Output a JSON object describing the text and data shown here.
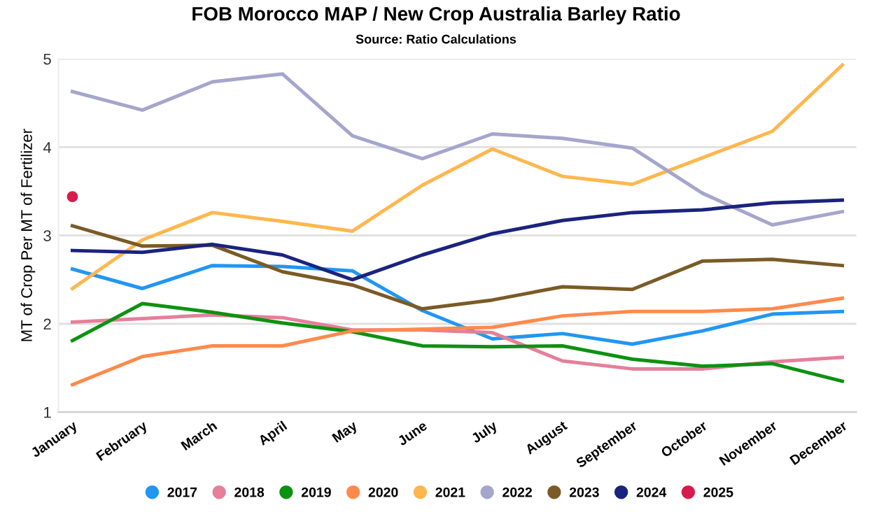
{
  "chart_data": {
    "type": "line",
    "title": "FOB Morocco MAP / New Crop Australia Barley Ratio",
    "subtitle": "Source: Ratio Calculations",
    "ylabel": "MT of Crop Per MT of Fertilizer",
    "categories": [
      "January",
      "February",
      "March",
      "April",
      "May",
      "June",
      "July",
      "August",
      "September",
      "October",
      "November",
      "December"
    ],
    "series": [
      {
        "name": "2017",
        "color": "#2196f3",
        "values": [
          2.62,
          2.4,
          2.66,
          2.65,
          2.6,
          2.15,
          1.83,
          1.89,
          1.77,
          1.92,
          2.11,
          2.14
        ]
      },
      {
        "name": "2018",
        "color": "#e57f9a",
        "values": [
          2.02,
          2.06,
          2.1,
          2.07,
          1.93,
          1.93,
          1.9,
          1.58,
          1.49,
          1.49,
          1.57,
          1.62
        ]
      },
      {
        "name": "2019",
        "color": "#0d9111",
        "values": [
          1.81,
          2.23,
          2.13,
          2.01,
          1.91,
          1.75,
          1.74,
          1.75,
          1.6,
          1.52,
          1.55,
          1.35
        ]
      },
      {
        "name": "2020",
        "color": "#ff8a4c",
        "values": [
          1.31,
          1.63,
          1.75,
          1.75,
          1.92,
          1.94,
          1.96,
          2.09,
          2.14,
          2.14,
          2.17,
          2.29
        ]
      },
      {
        "name": "2021",
        "color": "#ffb74d",
        "values": [
          2.4,
          2.95,
          3.26,
          3.16,
          3.05,
          3.57,
          3.98,
          3.67,
          3.58,
          3.88,
          4.18,
          4.93
        ]
      },
      {
        "name": "2022",
        "color": "#a4a6cc",
        "values": [
          4.63,
          4.42,
          4.74,
          4.83,
          4.13,
          3.87,
          4.15,
          4.1,
          3.99,
          3.48,
          3.12,
          3.27
        ]
      },
      {
        "name": "2023",
        "color": "#7b5a26",
        "values": [
          3.11,
          2.88,
          2.89,
          2.59,
          2.44,
          2.17,
          2.27,
          2.42,
          2.39,
          2.71,
          2.73,
          2.66
        ]
      },
      {
        "name": "2024",
        "color": "#1a237e",
        "values": [
          2.83,
          2.81,
          2.9,
          2.78,
          2.5,
          2.78,
          3.02,
          3.17,
          3.26,
          3.29,
          3.37,
          3.4
        ]
      },
      {
        "name": "2025",
        "color": "#d81b4c",
        "type": "scatter",
        "values": [
          3.44,
          null,
          null,
          null,
          null,
          null,
          null,
          null,
          null,
          null,
          null,
          null
        ]
      }
    ],
    "ylim": [
      1,
      5
    ],
    "yticks": [
      1,
      2,
      3,
      4,
      5
    ],
    "grid": "y",
    "legend": "bottom",
    "line_style": "solid"
  }
}
